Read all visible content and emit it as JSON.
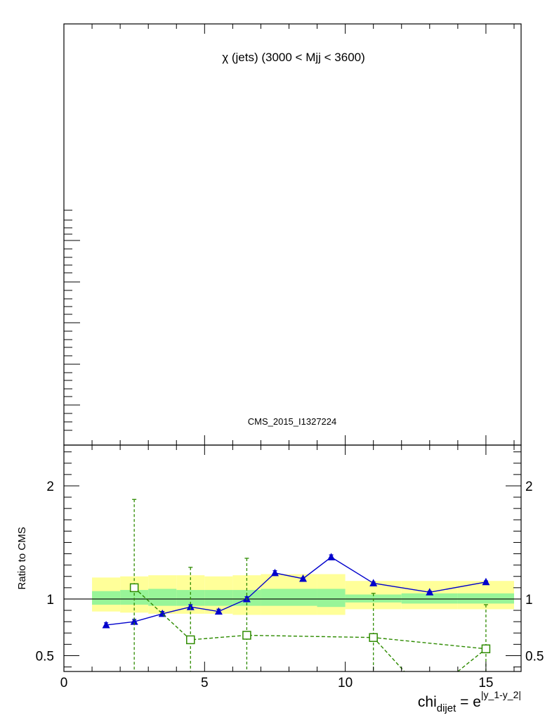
{
  "chart_data": {
    "type": "line",
    "title": "χ (jets) (3000 < Mjj < 3600)",
    "annotation": "CMS_2015_I1327224",
    "xlabel": {
      "main": "chi",
      "sub": "dijet",
      "eq": " = e",
      "sup": "|y_1-y_2|"
    },
    "ylabel": "Ratio to CMS",
    "xlim": [
      0,
      16.25
    ],
    "ylim": [
      0.36,
      2.36
    ],
    "xticks": [
      0,
      5,
      10,
      15
    ],
    "xtick_labels": [
      "0",
      "5",
      "10",
      "15"
    ],
    "yticks": [
      0.5,
      1,
      2
    ],
    "ytick_labels": [
      "0.5",
      "1",
      "2"
    ],
    "reference_line": 1,
    "uncertainty_bands": [
      {
        "name": "inner",
        "color": "#98f598",
        "bins": [
          {
            "x0": 1,
            "x1": 2,
            "lo": 0.95,
            "hi": 1.07
          },
          {
            "x0": 2,
            "x1": 3,
            "lo": 0.95,
            "hi": 1.08
          },
          {
            "x0": 3,
            "x1": 4,
            "lo": 0.94,
            "hi": 1.09
          },
          {
            "x0": 4,
            "x1": 5,
            "lo": 0.94,
            "hi": 1.08
          },
          {
            "x0": 5,
            "x1": 6,
            "lo": 0.94,
            "hi": 1.08
          },
          {
            "x0": 6,
            "x1": 7,
            "lo": 0.94,
            "hi": 1.08
          },
          {
            "x0": 7,
            "x1": 8,
            "lo": 0.94,
            "hi": 1.09
          },
          {
            "x0": 8,
            "x1": 9,
            "lo": 0.94,
            "hi": 1.09
          },
          {
            "x0": 9,
            "x1": 10,
            "lo": 0.93,
            "hi": 1.09
          },
          {
            "x0": 10,
            "x1": 12,
            "lo": 0.97,
            "hi": 1.04
          },
          {
            "x0": 12,
            "x1": 14,
            "lo": 0.96,
            "hi": 1.05
          },
          {
            "x0": 14,
            "x1": 16,
            "lo": 0.96,
            "hi": 1.05
          }
        ]
      },
      {
        "name": "outer",
        "color": "#ffff99",
        "bins": [
          {
            "x0": 1,
            "x1": 2,
            "lo": 0.89,
            "hi": 1.19
          },
          {
            "x0": 2,
            "x1": 3,
            "lo": 0.88,
            "hi": 1.2
          },
          {
            "x0": 3,
            "x1": 4,
            "lo": 0.87,
            "hi": 1.21
          },
          {
            "x0": 4,
            "x1": 5,
            "lo": 0.87,
            "hi": 1.21
          },
          {
            "x0": 5,
            "x1": 6,
            "lo": 0.87,
            "hi": 1.2
          },
          {
            "x0": 6,
            "x1": 7,
            "lo": 0.86,
            "hi": 1.21
          },
          {
            "x0": 7,
            "x1": 8,
            "lo": 0.86,
            "hi": 1.22
          },
          {
            "x0": 8,
            "x1": 9,
            "lo": 0.86,
            "hi": 1.22
          },
          {
            "x0": 9,
            "x1": 10,
            "lo": 0.86,
            "hi": 1.22
          },
          {
            "x0": 10,
            "x1": 12,
            "lo": 0.91,
            "hi": 1.16
          },
          {
            "x0": 12,
            "x1": 14,
            "lo": 0.91,
            "hi": 1.16
          },
          {
            "x0": 14,
            "x1": 16,
            "lo": 0.91,
            "hi": 1.16
          }
        ]
      }
    ],
    "series": [
      {
        "marker": "triangle",
        "color": "#0000cc",
        "dashed": false,
        "x": [
          1.5,
          2.5,
          3.5,
          4.5,
          5.5,
          6.5,
          7.5,
          8.5,
          9.5,
          11,
          13,
          15
        ],
        "y": [
          0.77,
          0.8,
          0.87,
          0.93,
          0.89,
          1.0,
          1.23,
          1.18,
          1.37,
          1.14,
          1.06,
          1.15
        ],
        "err": [
          0.02,
          0.02,
          0.02,
          0.02,
          0.02,
          0.02,
          0.02,
          0.01,
          0.02,
          0.01,
          0.01,
          0.01
        ]
      },
      {
        "marker": "open-square",
        "color": "#2e8b00",
        "dashed": true,
        "x": [
          2.5,
          4.5,
          6.5,
          11,
          15
        ],
        "y": [
          1.1,
          0.64,
          0.68,
          0.66,
          0.56
        ],
        "err": [
          0.78,
          0.64,
          0.68,
          0.39,
          0.39
        ],
        "tail_to": {
          "x": 12.1,
          "y": 0.36
        },
        "head_from": {
          "x": 14.0,
          "y": 0.36
        }
      }
    ]
  }
}
